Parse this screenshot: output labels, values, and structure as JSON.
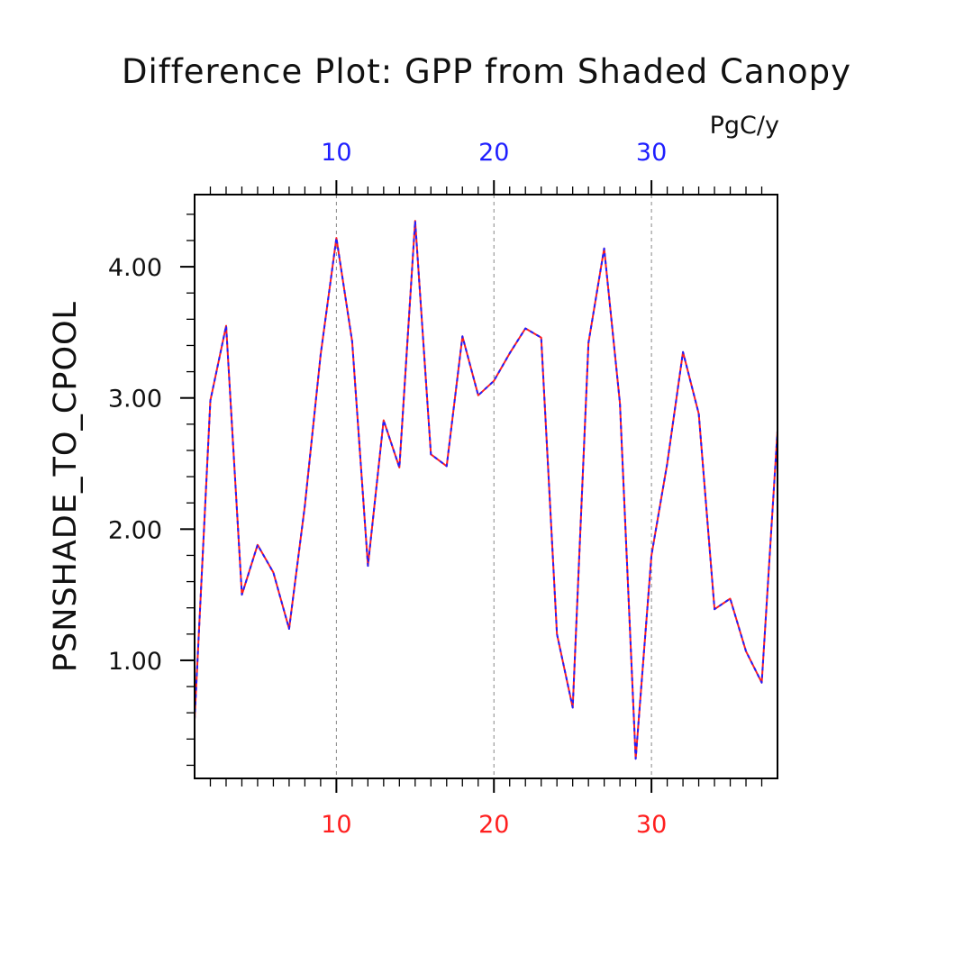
{
  "colors": {
    "bottom_axis": "#ff1f1f",
    "top_axis": "#1f1fff",
    "axes": "#000000",
    "grid": "#888888"
  },
  "chart_data": {
    "type": "line",
    "title": "Difference Plot: GPP from Shaded Canopy",
    "units": "PgC/y",
    "ylabel": "PSNSHADE_TO_CPOOL",
    "xlabel": "",
    "xlim": [
      1,
      38
    ],
    "ylim": [
      0.1,
      4.55
    ],
    "grid": "vertical dashed at major x ticks",
    "x_ticks_major": [
      10,
      20,
      30
    ],
    "y_ticks_major": [
      1.0,
      2.0,
      3.0,
      4.0
    ],
    "y_tick_labels": [
      "1.00",
      "2.00",
      "3.00",
      "4.00"
    ],
    "series": [
      {
        "color": "#ff1f1f",
        "style": "solid",
        "x": [
          1,
          2,
          3,
          4,
          5,
          6,
          7,
          8,
          9,
          10,
          11,
          12,
          13,
          14,
          15,
          16,
          17,
          18,
          19,
          20,
          21,
          22,
          23,
          24,
          25,
          26,
          27,
          28,
          29,
          30,
          31,
          32,
          33,
          34,
          35,
          36,
          37,
          38
        ],
        "values": [
          0.55,
          2.98,
          3.55,
          1.5,
          1.88,
          1.67,
          1.24,
          2.18,
          3.33,
          4.22,
          3.43,
          1.72,
          2.83,
          2.47,
          4.35,
          2.57,
          2.48,
          3.47,
          3.02,
          3.13,
          3.34,
          3.53,
          3.46,
          1.2,
          0.64,
          3.42,
          4.14,
          2.96,
          0.25,
          1.8,
          2.5,
          3.35,
          2.88,
          1.39,
          1.47,
          1.07,
          0.83,
          2.75
        ]
      },
      {
        "color": "#1f1fff",
        "style": "dashed",
        "x": [
          1,
          2,
          3,
          4,
          5,
          6,
          7,
          8,
          9,
          10,
          11,
          12,
          13,
          14,
          15,
          16,
          17,
          18,
          19,
          20,
          21,
          22,
          23,
          24,
          25,
          26,
          27,
          28,
          29,
          30,
          31,
          32,
          33,
          34,
          35,
          36,
          37,
          38
        ],
        "values": [
          0.55,
          2.98,
          3.55,
          1.5,
          1.88,
          1.67,
          1.24,
          2.18,
          3.33,
          4.22,
          3.43,
          1.72,
          2.83,
          2.47,
          4.35,
          2.57,
          2.48,
          3.47,
          3.02,
          3.13,
          3.34,
          3.53,
          3.46,
          1.2,
          0.64,
          3.42,
          4.14,
          2.96,
          0.25,
          1.8,
          2.5,
          3.35,
          2.88,
          1.39,
          1.47,
          1.07,
          0.83,
          2.75
        ]
      }
    ]
  }
}
